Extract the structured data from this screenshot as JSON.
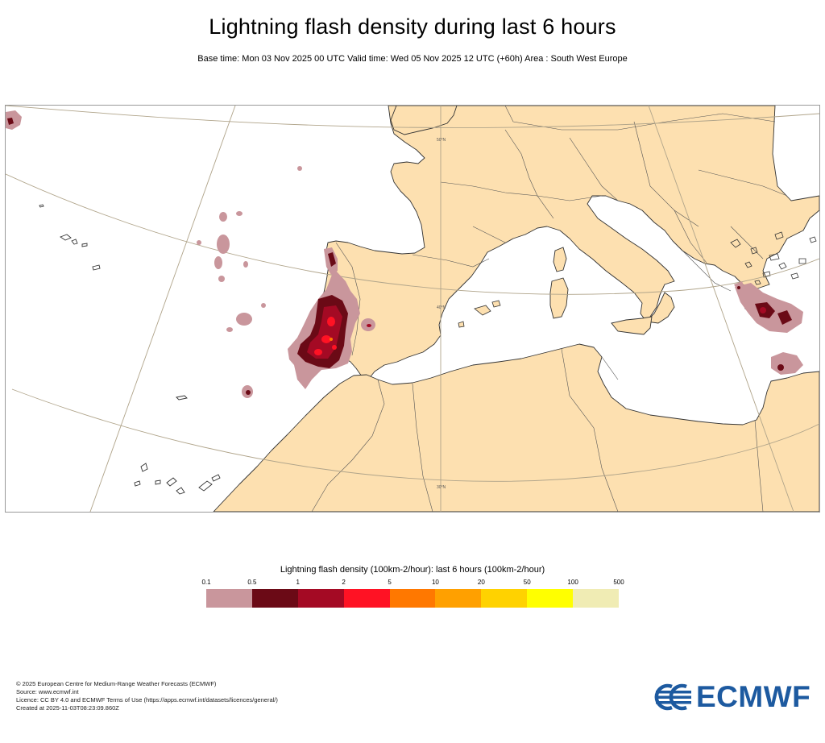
{
  "header": {
    "title": "Lightning flash density during last 6 hours",
    "subtitle": "Base time: Mon 03 Nov 2025 00 UTC Valid time: Wed 05 Nov 2025 12 UTC (+60h) Area : South West Europe"
  },
  "map": {
    "area": "South West Europe",
    "colors": {
      "sea": "#ffffff",
      "land": "#fde0b0",
      "coast": "#333333",
      "graticule": "#b0a48a"
    },
    "graticule_labels": [
      "50°N",
      "40°N",
      "30°N"
    ],
    "regions_with_lightning": [
      "Portugal / west Iberia",
      "Atlantic west of Iberia",
      "Aegean Sea / Greece",
      "Eastern Libya coast"
    ]
  },
  "legend": {
    "title": "Lightning flash density (100km-2/hour): last 6 hours (100km-2/hour)",
    "ticks": [
      "0.1",
      "0.5",
      "1",
      "2",
      "5",
      "10",
      "20",
      "50",
      "100",
      "500"
    ],
    "colors": [
      "#c9969c",
      "#6b0a16",
      "#a40a24",
      "#ff1224",
      "#ff7800",
      "#ffa000",
      "#ffd200",
      "#ffff00",
      "#f0ecb4"
    ]
  },
  "footer": {
    "copyright": "© 2025 European Centre for Medium-Range Weather Forecasts (ECMWF)",
    "source": "Source: www.ecmwf.int",
    "licence": "Licence: CC BY 4.0 and ECMWF Terms of Use (https://apps.ecmwf.int/datasets/licences/general/)",
    "created": "Created at 2025-11-03T08:23:09.860Z"
  },
  "logo": {
    "text": "ECMWF",
    "color": "#1d5aa0"
  }
}
